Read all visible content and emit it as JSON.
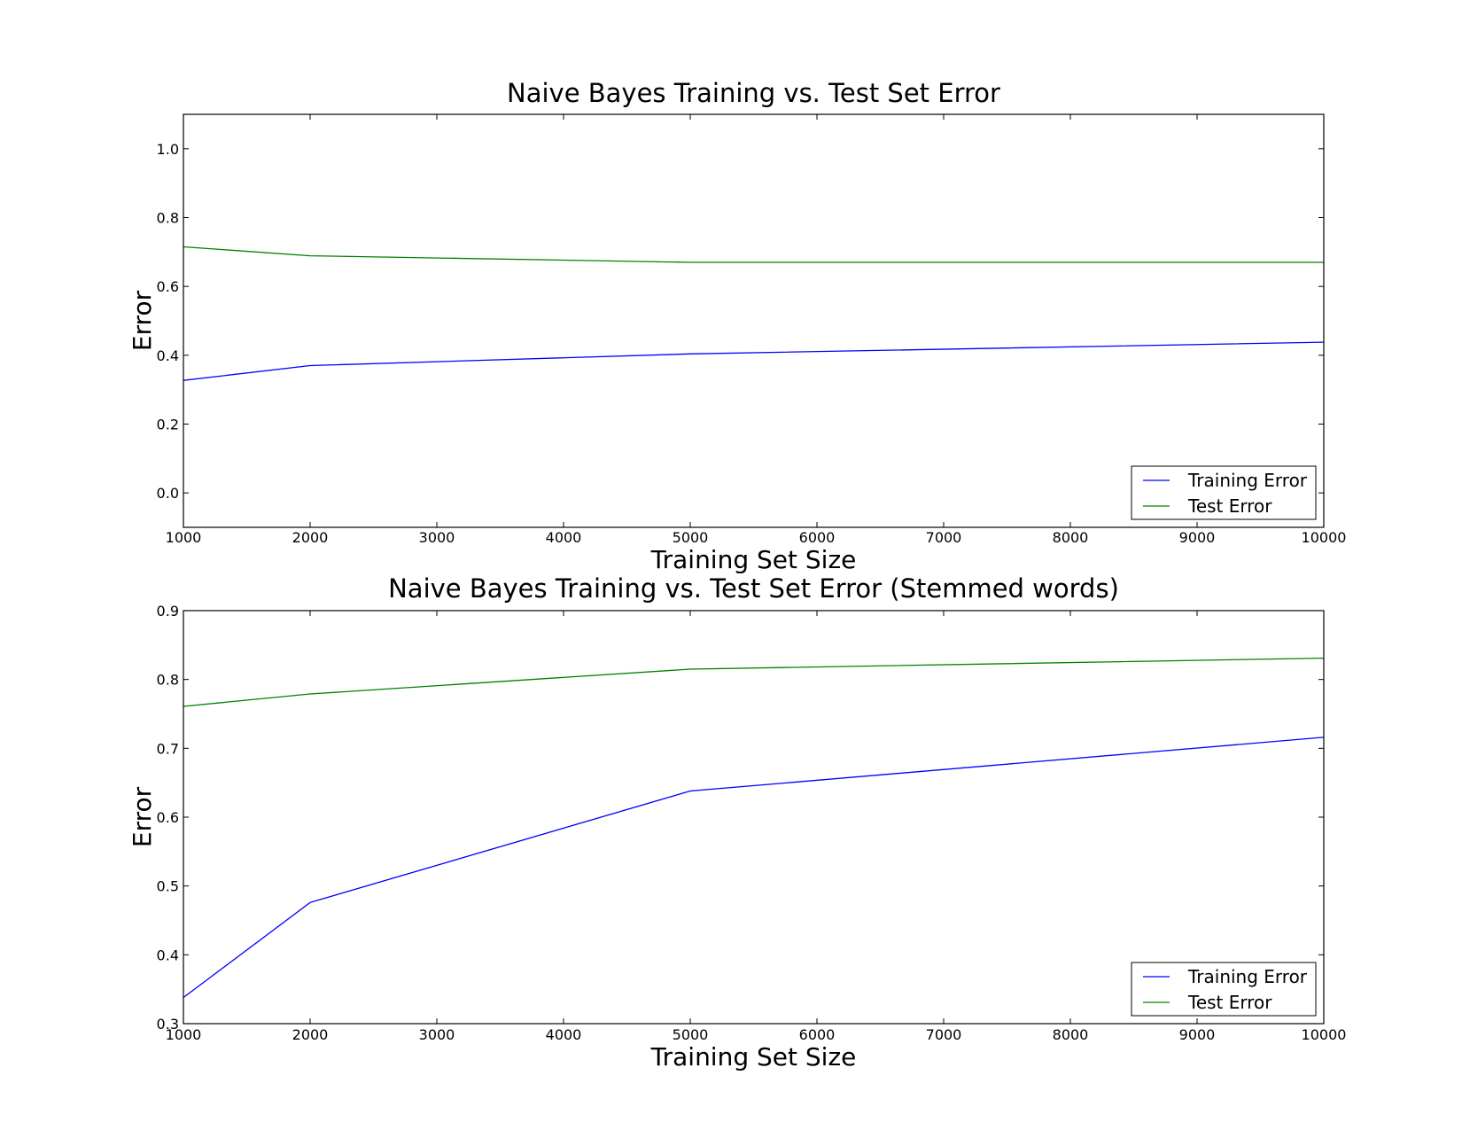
{
  "chart_data": [
    {
      "type": "line",
      "title": "Naive Bayes Training vs. Test Set Error",
      "xlabel": "Training Set Size",
      "ylabel": "Error",
      "xlim": [
        1000,
        10000
      ],
      "ylim": [
        -0.1,
        1.1
      ],
      "xticks": [
        1000,
        2000,
        3000,
        4000,
        5000,
        6000,
        7000,
        8000,
        9000,
        10000
      ],
      "xtick_labels": [
        "1000",
        "2000",
        "3000",
        "4000",
        "5000",
        "6000",
        "7000",
        "8000",
        "9000",
        "10000"
      ],
      "yticks": [
        0.0,
        0.2,
        0.4,
        0.6,
        0.8,
        1.0
      ],
      "ytick_labels": [
        "0.0",
        "0.2",
        "0.4",
        "0.6",
        "0.8",
        "1.0"
      ],
      "grid": false,
      "legend_position": "lower-right",
      "series": [
        {
          "name": "Training Error",
          "color": "#0000ff",
          "x": [
            1000,
            2000,
            5000,
            10000
          ],
          "y": [
            0.327,
            0.37,
            0.404,
            0.438
          ]
        },
        {
          "name": "Test Error",
          "color": "#008000",
          "x": [
            1000,
            2000,
            5000,
            10000
          ],
          "y": [
            0.715,
            0.689,
            0.67,
            0.67
          ]
        }
      ]
    },
    {
      "type": "line",
      "title": "Naive Bayes Training vs. Test Set Error (Stemmed words)",
      "xlabel": "Training Set Size",
      "ylabel": "Error",
      "xlim": [
        1000,
        10000
      ],
      "ylim": [
        0.3,
        0.9
      ],
      "xticks": [
        1000,
        2000,
        3000,
        4000,
        5000,
        6000,
        7000,
        8000,
        9000,
        10000
      ],
      "xtick_labels": [
        "1000",
        "2000",
        "3000",
        "4000",
        "5000",
        "6000",
        "7000",
        "8000",
        "9000",
        "10000"
      ],
      "yticks": [
        0.3,
        0.4,
        0.5,
        0.6,
        0.7,
        0.8,
        0.9
      ],
      "ytick_labels": [
        "0.3",
        "0.4",
        "0.5",
        "0.6",
        "0.7",
        "0.8",
        "0.9"
      ],
      "grid": false,
      "legend_position": "lower-right",
      "series": [
        {
          "name": "Training Error",
          "color": "#0000ff",
          "x": [
            1000,
            2000,
            5000,
            10000
          ],
          "y": [
            0.338,
            0.476,
            0.638,
            0.716
          ]
        },
        {
          "name": "Test Error",
          "color": "#008000",
          "x": [
            1000,
            2000,
            5000,
            10000
          ],
          "y": [
            0.761,
            0.779,
            0.815,
            0.831
          ]
        }
      ]
    }
  ]
}
